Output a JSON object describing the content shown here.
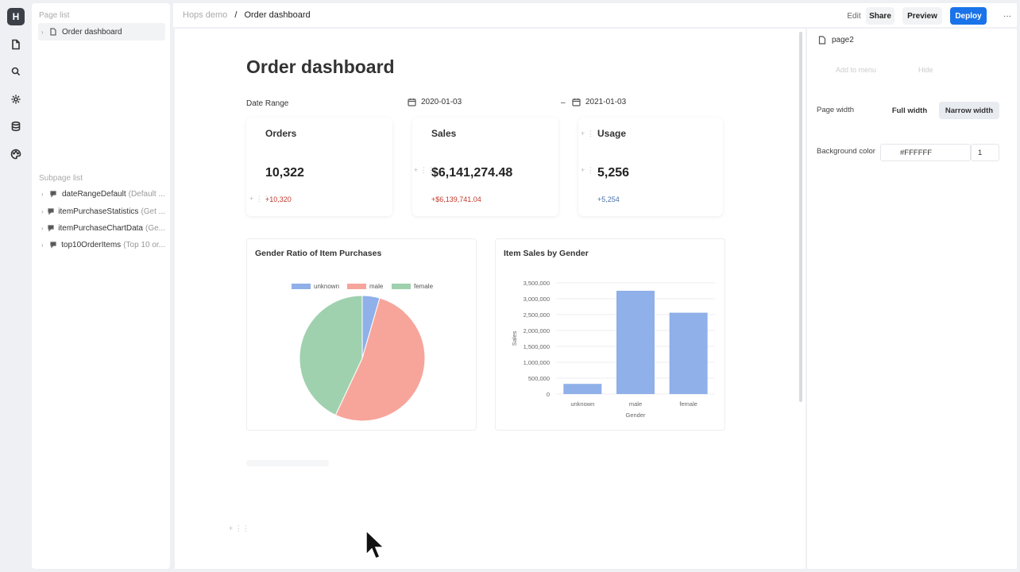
{
  "app": {
    "logo_letter": "H"
  },
  "rail": {
    "icons": [
      "file-icon",
      "search-icon",
      "gear-icon",
      "database-icon",
      "palette-icon"
    ]
  },
  "left_panel": {
    "page_list_title": "Page list",
    "pages": [
      {
        "label": "Order dashboard"
      }
    ],
    "subpage_list_title": "Subpage list",
    "subpages": [
      {
        "name": "dateRangeDefault",
        "desc": "(Default ..."
      },
      {
        "name": "itemPurchaseStatistics",
        "desc": "(Get ..."
      },
      {
        "name": "itemPurchaseChartData",
        "desc": "(Ge..."
      },
      {
        "name": "top10OrderItems",
        "desc": "(Top 10 or..."
      }
    ]
  },
  "header": {
    "breadcrumb_root": "Hops demo",
    "breadcrumb_sep": "/",
    "breadcrumb_current": "Order dashboard",
    "edit_label": "Edit",
    "share_label": "Share",
    "preview_label": "Preview",
    "deploy_label": "Deploy",
    "more_label": "···"
  },
  "main": {
    "title": "Order dashboard",
    "date_range_label": "Date Range",
    "date_from": "2020-01-03",
    "date_sep": "–",
    "date_to": "2021-01-03",
    "stats": [
      {
        "label": "Orders",
        "value": "10,322",
        "delta": "+10,320",
        "delta_color": "#c0392b"
      },
      {
        "label": "Sales",
        "value": "$6,141,274.48",
        "delta": "+$6,139,741.04",
        "delta_color": "#c0392b"
      },
      {
        "label": "Usage",
        "value": "5,256",
        "delta": "+5,254",
        "delta_color": "#4a6fa5"
      }
    ]
  },
  "chart_data": [
    {
      "type": "pie",
      "title": "Gender Ratio of Item Purchases",
      "legend": [
        "unknown",
        "male",
        "female"
      ],
      "legend_position": "top",
      "categories": [
        "unknown",
        "male",
        "female"
      ],
      "values": [
        4.5,
        52.5,
        43
      ],
      "colors": [
        "#8fb0e8",
        "#f7a59b",
        "#9fd1ae"
      ]
    },
    {
      "type": "bar",
      "title": "Item Sales by Gender",
      "xlabel": "Gender",
      "ylabel": "Sales",
      "categories": [
        "unknown",
        "male",
        "female"
      ],
      "values": [
        320000,
        3250000,
        2560000
      ],
      "ylim": [
        0,
        3500000
      ],
      "yticks": [
        "3,500,000",
        "3,000,000",
        "2,500,000",
        "2,000,000",
        "1,500,000",
        "1,000,000",
        "500,000",
        "0"
      ],
      "grid": true,
      "color": "#8fb0e8"
    }
  ],
  "right_panel": {
    "page_name": "page2",
    "faint_left": "Add to menu",
    "faint_right": "Hide",
    "page_width_label": "Page width",
    "full_width_label": "Full width",
    "narrow_width_label": "Narrow width",
    "background_color_label": "Background color",
    "background_color_value": "#FFFFFF",
    "opacity_value": "1"
  }
}
